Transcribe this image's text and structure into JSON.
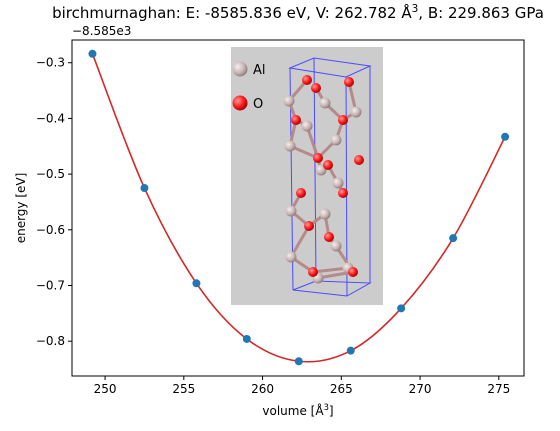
{
  "chart_data": {
    "type": "scatter",
    "title": "birchmurnaghan: E: -8585.836 eV, V: 262.782 Å^3, B: 229.863 GPa",
    "xlabel": "volume [Å^3]",
    "ylabel": "energy [eV]",
    "y_offset_label": "−8.585e3",
    "xlim": [
      247.9,
      276.6
    ],
    "ylim": [
      -0.8625,
      -0.2592
    ],
    "x_ticks": [
      250,
      255,
      260,
      265,
      270,
      275
    ],
    "y_ticks": [
      -0.3,
      -0.4,
      -0.5,
      -0.6,
      -0.7,
      -0.8
    ],
    "x_tick_labels": [
      "250",
      "255",
      "260",
      "265",
      "270",
      "275"
    ],
    "y_tick_labels": [
      "−0.3",
      "−0.4",
      "−0.5",
      "−0.6",
      "−0.7",
      "−0.8"
    ],
    "grid": false,
    "series": [
      {
        "kind": "points",
        "color": "#1f77b4",
        "x": [
          249.2,
          252.5,
          255.8,
          259.0,
          262.3,
          265.6,
          268.8,
          272.1,
          275.4
        ],
        "y": [
          -0.284,
          -0.525,
          -0.696,
          -0.796,
          -0.836,
          -0.817,
          -0.741,
          -0.615,
          -0.433
        ]
      },
      {
        "kind": "fit-curve",
        "color": "#d62728",
        "model": "birch-murnaghan",
        "minimum": {
          "x": 262.782,
          "y": -0.836
        }
      }
    ],
    "inset": {
      "background": "#cccccc",
      "legend": [
        {
          "label": "Al",
          "color": "#c8b4b4"
        },
        {
          "label": "O",
          "color": "#ff2020"
        }
      ]
    }
  }
}
